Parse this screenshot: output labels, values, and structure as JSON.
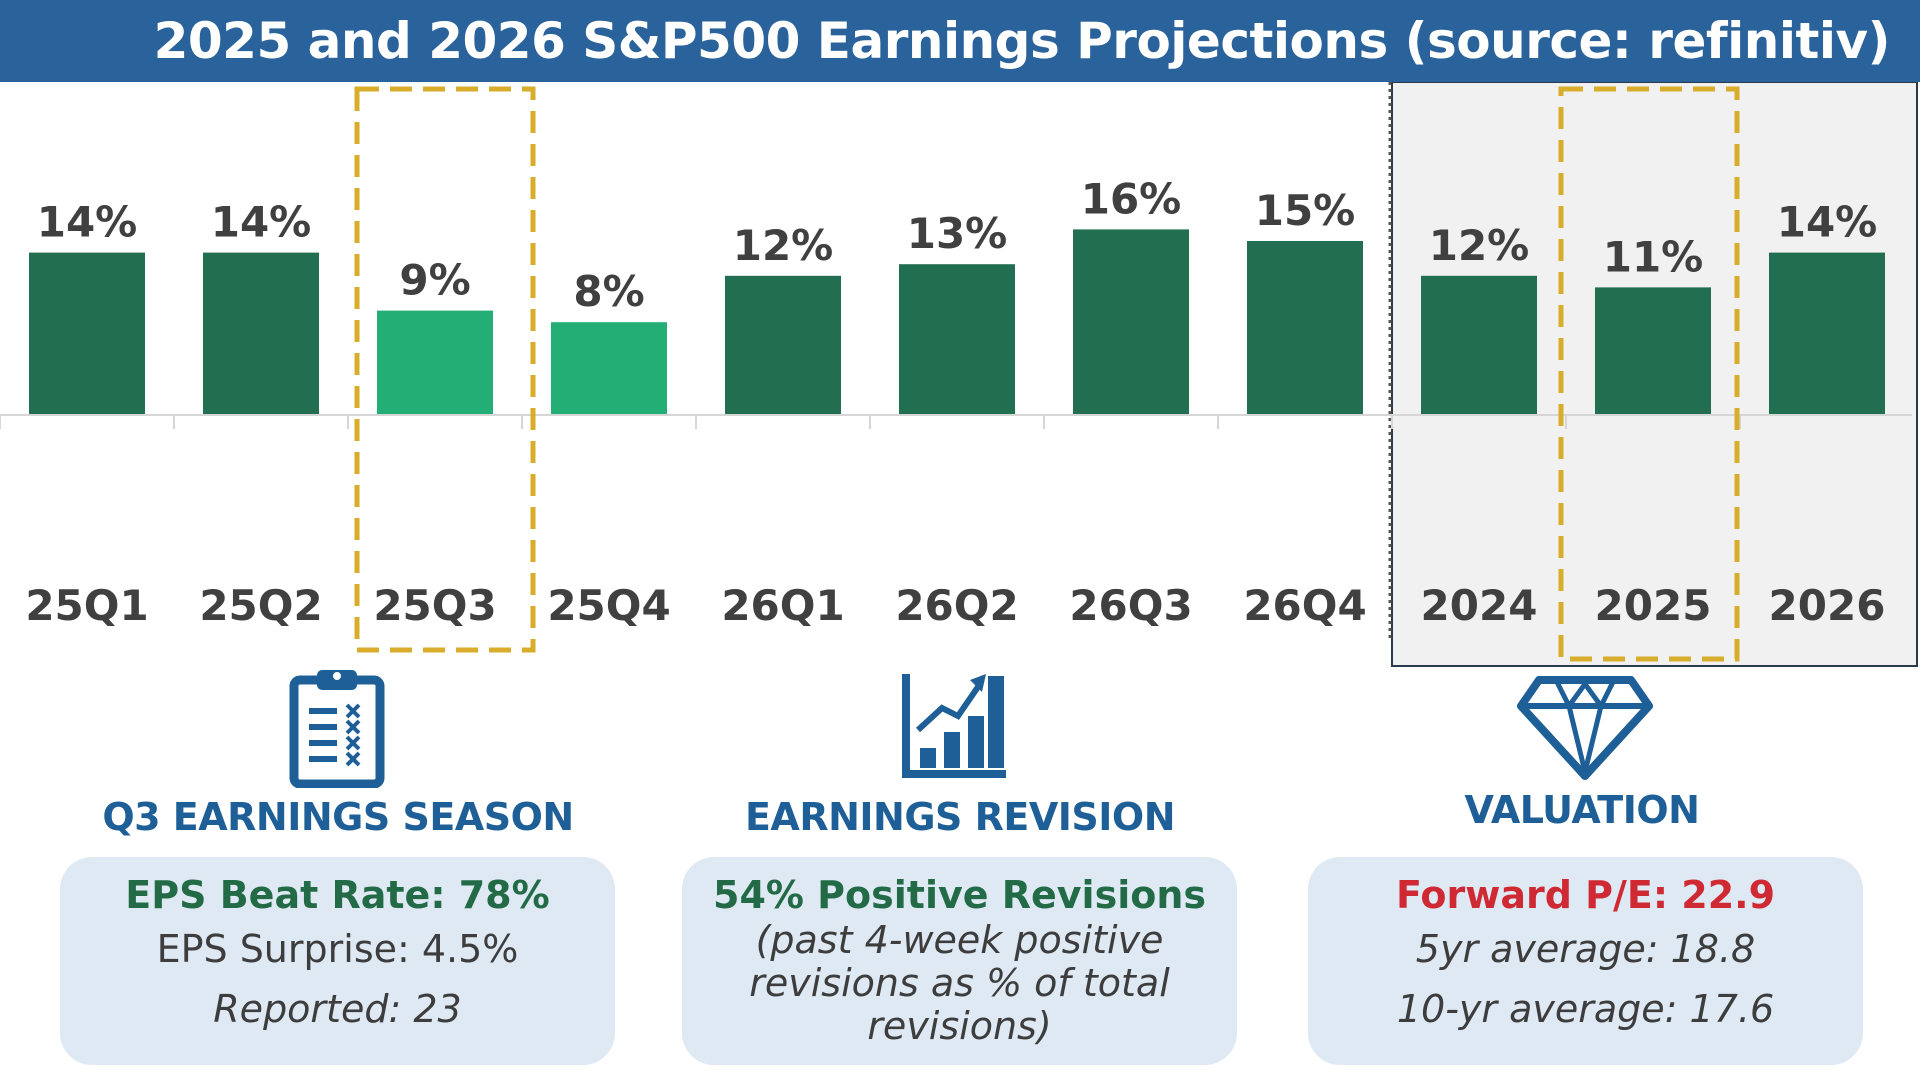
{
  "header": {
    "title": "2025 and 2026 S&P500 Earnings Projections (source: refinitiv)"
  },
  "chart_data": {
    "type": "bar",
    "title": "2025 and 2026 S&P500 Earnings Projections (source: refinitiv)",
    "categories": [
      "25Q1",
      "25Q2",
      "25Q3",
      "25Q4",
      "26Q1",
      "26Q2",
      "26Q3",
      "26Q4",
      "2024",
      "2025",
      "2026"
    ],
    "values": [
      14,
      14,
      9,
      8,
      12,
      13,
      16,
      15,
      12,
      11,
      14
    ],
    "value_labels": [
      "14%",
      "14%",
      "9%",
      "8%",
      "12%",
      "13%",
      "16%",
      "15%",
      "12%",
      "11%",
      "14%"
    ],
    "bar_colors": [
      "#216e50",
      "#216e50",
      "#22ae74",
      "#22ae74",
      "#216e50",
      "#216e50",
      "#216e50",
      "#216e50",
      "#216e50",
      "#216e50",
      "#216e50"
    ],
    "highlighted": [
      "25Q3",
      "2025"
    ],
    "annual_panel": [
      "2024",
      "2025",
      "2026"
    ],
    "ylabel": "",
    "xlabel": "",
    "ylim": [
      0,
      22
    ]
  },
  "colors": {
    "header": "#2a639b",
    "bar_dark": "#216e50",
    "bar_light": "#22ae74",
    "highlight": "#d9ad2b",
    "icon": "#1f5f97",
    "card": "#dfe9f4",
    "green_text": "#226b46",
    "red_text": "#cf2a33"
  },
  "sections": {
    "earnings": {
      "icon": "clipboard-icon",
      "title": "Q3 EARNINGS SEASON",
      "line1": "EPS Beat Rate: 78%",
      "line2": "EPS Surprise: 4.5%",
      "line3": "Reported: 23"
    },
    "revision": {
      "icon": "bar-growth-icon",
      "title": "EARNINGS REVISION",
      "line1": "54% Positive Revisions",
      "line2": "(past 4-week positive",
      "line3": "revisions as % of total",
      "line4": "revisions)"
    },
    "valuation": {
      "icon": "diamond-icon",
      "title": "VALUATION",
      "line1": "Forward P/E: 22.9",
      "line2": "5yr average: 18.8",
      "line3": "10-yr average: 17.6"
    }
  }
}
